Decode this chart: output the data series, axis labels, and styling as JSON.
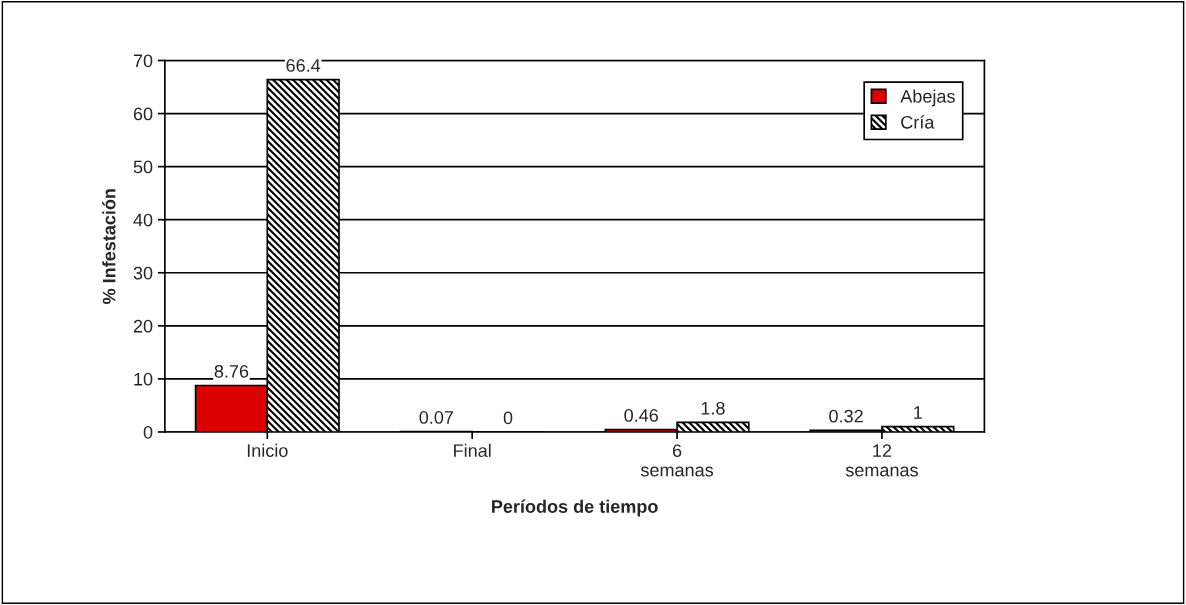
{
  "chart_data": {
    "type": "bar",
    "xlabel": "Períodos de tiempo",
    "ylabel": "% Infestación",
    "categories": [
      "Inicio",
      "Final",
      "6 semanas",
      "12 semanas"
    ],
    "series": [
      {
        "name": "Abejas",
        "color": "#dd0000",
        "values": [
          8.76,
          0.07,
          0.46,
          0.32
        ]
      },
      {
        "name": "Cría",
        "color": "#000000",
        "values": [
          66.4,
          0,
          1.8,
          1
        ]
      }
    ],
    "ylim": [
      0,
      70
    ],
    "yticks": [
      0,
      10,
      20,
      30,
      40,
      50,
      60,
      70
    ],
    "grid": "y",
    "legend": "top right",
    "data_labels": true
  }
}
